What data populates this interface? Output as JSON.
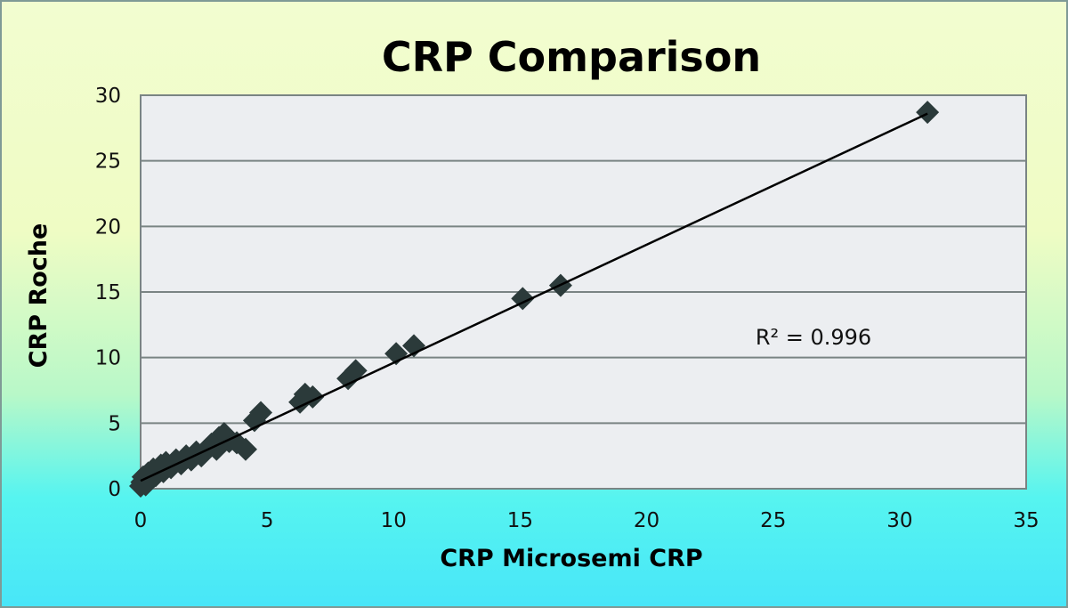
{
  "chart_data": {
    "type": "scatter",
    "title": "CRP Comparison",
    "xlabel": "CRP Microsemi CRP",
    "ylabel": "CRP Roche",
    "xlim": [
      0,
      35
    ],
    "ylim": [
      0,
      30
    ],
    "xticks": [
      0,
      5,
      10,
      15,
      20,
      25,
      30,
      35
    ],
    "yticks": [
      0,
      5,
      10,
      15,
      20,
      25,
      30
    ],
    "grid": {
      "horizontal": true,
      "vertical": false
    },
    "legend": null,
    "marker": "diamond",
    "marker_color": "#2b3a3a",
    "trendline": {
      "type": "linear",
      "x": [
        0,
        31.1
      ],
      "y": [
        0.6,
        28.6
      ],
      "color": "#000000"
    },
    "annotation": {
      "text": "R² = 0.996",
      "x": 24.3,
      "y": 11.0
    },
    "series": [
      {
        "name": "CRP",
        "points": [
          [
            0.0,
            0.2
          ],
          [
            0.05,
            0.5
          ],
          [
            0.1,
            0.9
          ],
          [
            0.2,
            0.3
          ],
          [
            0.3,
            1.2
          ],
          [
            0.4,
            0.7
          ],
          [
            0.5,
            1.5
          ],
          [
            0.6,
            1.0
          ],
          [
            0.8,
            1.8
          ],
          [
            0.9,
            1.3
          ],
          [
            1.0,
            2.0
          ],
          [
            1.2,
            1.6
          ],
          [
            1.4,
            2.2
          ],
          [
            1.6,
            1.9
          ],
          [
            1.8,
            2.5
          ],
          [
            2.0,
            2.2
          ],
          [
            2.2,
            2.8
          ],
          [
            2.4,
            2.5
          ],
          [
            2.6,
            3.0
          ],
          [
            2.8,
            3.4
          ],
          [
            3.0,
            3.0
          ],
          [
            3.1,
            3.9
          ],
          [
            3.3,
            4.2
          ],
          [
            3.5,
            3.6
          ],
          [
            3.8,
            3.5
          ],
          [
            4.15,
            3.0
          ],
          [
            4.5,
            5.2
          ],
          [
            4.75,
            5.8
          ],
          [
            6.3,
            6.6
          ],
          [
            6.5,
            7.2
          ],
          [
            6.8,
            7.0
          ],
          [
            8.2,
            8.4
          ],
          [
            8.5,
            9.0
          ],
          [
            10.1,
            10.3
          ],
          [
            10.8,
            10.9
          ],
          [
            15.1,
            14.5
          ],
          [
            16.6,
            15.5
          ],
          [
            31.1,
            28.7
          ]
        ]
      }
    ]
  }
}
